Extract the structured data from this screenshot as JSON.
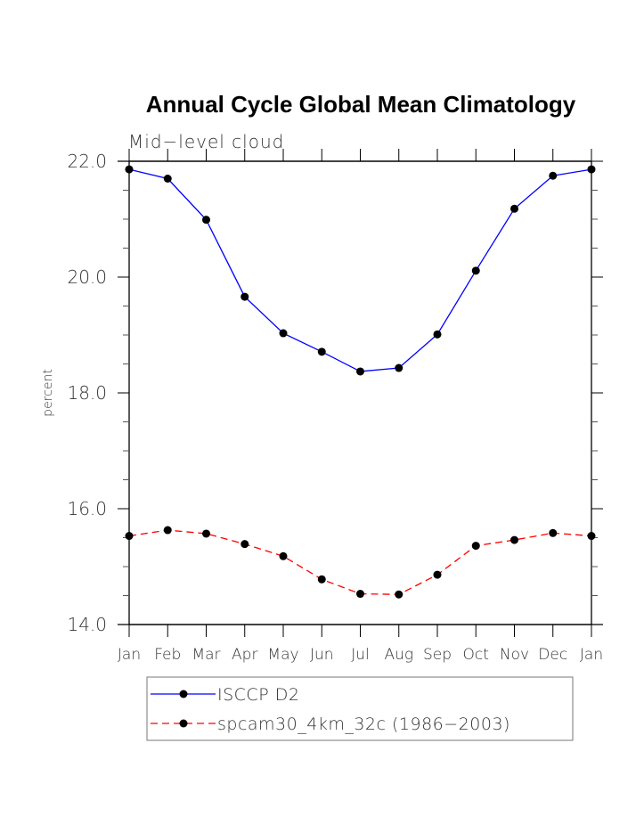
{
  "chart_data": {
    "type": "line",
    "title": "Annual Cycle Global Mean Climatology",
    "subtitle": "Mid-level cloud",
    "xlabel": "",
    "ylabel": "percent",
    "categories": [
      "Jan",
      "Feb",
      "Mar",
      "Apr",
      "May",
      "Jun",
      "Jul",
      "Aug",
      "Sep",
      "Oct",
      "Nov",
      "Dec",
      "Jan"
    ],
    "ylim": [
      14.0,
      22.0
    ],
    "yticks": [
      "14.0",
      "16.0",
      "18.0",
      "20.0",
      "22.0"
    ],
    "ytick_values": [
      14.0,
      16.0,
      18.0,
      20.0,
      22.0
    ],
    "yminor_step": 0.5,
    "grid": false,
    "legend_position": "bottom",
    "series": [
      {
        "name": "ISCCP D2",
        "color": "#0000ff",
        "dash": "solid",
        "marker": "filled-circle",
        "values": [
          21.86,
          21.7,
          20.99,
          19.66,
          19.03,
          18.71,
          18.37,
          18.43,
          19.01,
          20.11,
          21.18,
          21.75,
          21.86
        ]
      },
      {
        "name": "spcam30_4km_32c (1986-2003)",
        "color": "#ff0000",
        "dash": "dashed",
        "marker": "filled-circle",
        "values": [
          15.53,
          15.63,
          15.57,
          15.39,
          15.18,
          14.78,
          14.53,
          14.52,
          14.86,
          15.36,
          15.46,
          15.58,
          15.53
        ]
      }
    ]
  },
  "legend": {
    "items": [
      {
        "label": "ISCCP D2"
      },
      {
        "label": "spcam30_4km_32c (1986−2003)"
      }
    ]
  },
  "labels": {
    "subtitle_display": "Mid−level cloud"
  }
}
